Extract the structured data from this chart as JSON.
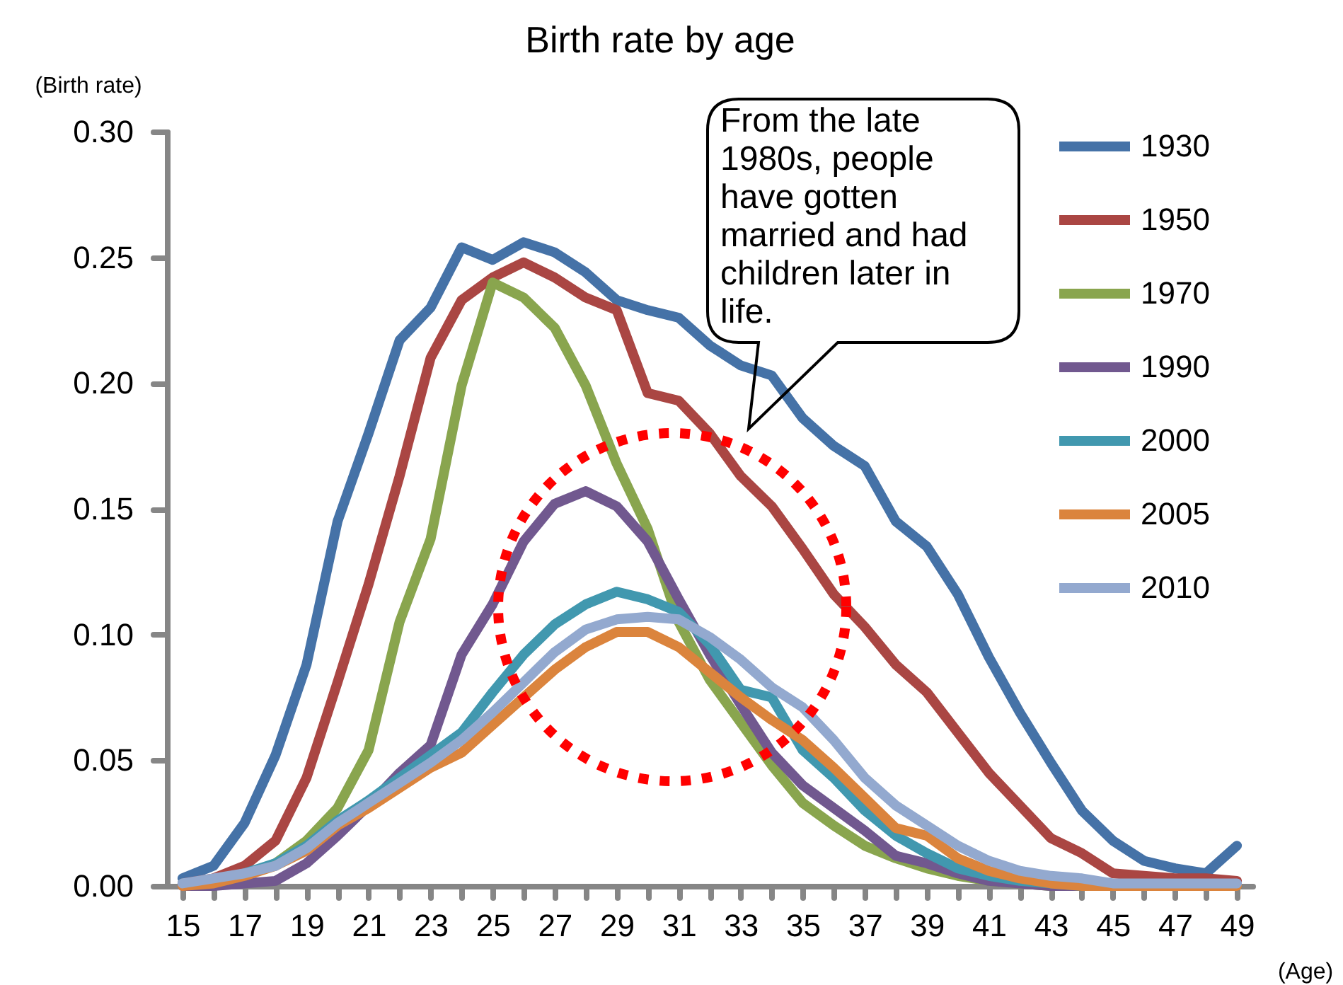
{
  "chart_data": {
    "type": "line",
    "title": "Birth rate by age",
    "xlabel": "(Age)",
    "ylabel": "(Birth rate)",
    "annotations": [
      "From the late 1980s, people have gotten married and had children later in life."
    ],
    "categories": [
      "15",
      null,
      "17",
      null,
      "19",
      null,
      "21",
      null,
      "23",
      null,
      "25",
      null,
      "27",
      null,
      "29",
      null,
      "31",
      null,
      "33",
      null,
      "35",
      null,
      "37",
      null,
      "39",
      null,
      "41",
      null,
      "43",
      null,
      "45",
      null,
      "47",
      null,
      "49"
    ],
    "series": [
      {
        "name": "1930",
        "color": "#4572a7",
        "values": [
          0.003,
          0.008,
          0.025,
          0.052,
          0.088,
          0.145,
          0.18,
          0.217,
          0.23,
          0.254,
          0.249,
          0.256,
          0.252,
          0.244,
          0.233,
          0.229,
          0.226,
          0.215,
          0.207,
          0.203,
          0.186,
          0.175,
          0.167,
          0.145,
          0.135,
          0.116,
          0.091,
          0.069,
          0.049,
          0.03,
          0.018,
          0.01,
          0.007,
          0.005,
          0.016
        ]
      },
      {
        "name": "1950",
        "color": "#aa4643",
        "values": [
          0.001,
          0.003,
          0.008,
          0.018,
          0.043,
          0.081,
          0.12,
          0.163,
          0.21,
          0.233,
          0.242,
          0.248,
          0.242,
          0.234,
          0.229,
          0.196,
          0.193,
          0.18,
          0.163,
          0.151,
          0.134,
          0.116,
          0.103,
          0.088,
          0.077,
          0.061,
          0.045,
          0.032,
          0.019,
          0.013,
          0.005,
          0.004,
          0.003,
          0.003,
          0.002
        ]
      },
      {
        "name": "1970",
        "color": "#89a54e",
        "values": [
          null,
          null,
          0.004,
          0.009,
          0.018,
          0.031,
          0.054,
          0.105,
          0.138,
          0.199,
          0.24,
          0.234,
          0.222,
          0.199,
          0.168,
          0.142,
          0.105,
          0.082,
          0.065,
          0.048,
          0.033,
          0.024,
          0.016,
          0.011,
          0.007,
          0.004,
          0.002,
          0.001,
          0,
          0,
          0,
          0,
          0,
          0,
          0
        ]
      },
      {
        "name": "1990",
        "color": "#71588f",
        "values": [
          0,
          0,
          0.001,
          0.002,
          0.009,
          0.02,
          0.032,
          0.045,
          0.056,
          0.092,
          0.112,
          0.137,
          0.152,
          0.157,
          0.151,
          0.137,
          0.114,
          0.092,
          0.072,
          0.053,
          0.04,
          0.031,
          0.022,
          0.012,
          0.009,
          0.005,
          0.002,
          0.001,
          0,
          0,
          0,
          0,
          0,
          0,
          0
        ]
      },
      {
        "name": "2000",
        "color": "#4198af",
        "values": [
          0.001,
          0.002,
          0.005,
          0.009,
          0.016,
          0.026,
          0.034,
          0.043,
          0.052,
          0.061,
          0.077,
          0.092,
          0.104,
          0.112,
          0.117,
          0.114,
          0.109,
          0.096,
          0.078,
          0.075,
          0.054,
          0.043,
          0.03,
          0.02,
          0.013,
          0.007,
          0.004,
          0.002,
          0.001,
          0,
          0,
          0,
          0,
          0,
          0
        ]
      },
      {
        "name": "2005",
        "color": "#db843d",
        "values": [
          0,
          0.001,
          0.004,
          0.008,
          0.014,
          0.024,
          0.031,
          0.039,
          0.047,
          0.053,
          0.064,
          0.075,
          0.086,
          0.095,
          0.101,
          0.101,
          0.095,
          0.085,
          0.075,
          0.066,
          0.058,
          0.047,
          0.035,
          0.023,
          0.02,
          0.011,
          0.006,
          0.003,
          0.001,
          0,
          0,
          0,
          0,
          0,
          0
        ]
      },
      {
        "name": "2010",
        "color": "#93a9cf",
        "values": [
          0.001,
          0.003,
          0.005,
          0.008,
          0.015,
          0.025,
          0.033,
          0.041,
          0.049,
          0.058,
          0.069,
          0.081,
          0.093,
          0.102,
          0.106,
          0.107,
          0.106,
          0.099,
          0.09,
          0.079,
          0.071,
          0.058,
          0.043,
          0.032,
          0.024,
          0.016,
          0.01,
          0.006,
          0.004,
          0.003,
          0.001,
          0.001,
          0.001,
          0.001,
          0.001
        ]
      }
    ],
    "ylim": [
      0,
      0.3
    ],
    "yticks": [
      {
        "value": 0,
        "label": "0.00"
      },
      {
        "value": 0.05,
        "label": "0.05"
      },
      {
        "value": 0.1,
        "label": "0.10"
      },
      {
        "value": 0.15,
        "label": "0.15"
      },
      {
        "value": 0.2,
        "label": "0.20"
      },
      {
        "value": 0.25,
        "label": "0.25"
      },
      {
        "value": 0.3,
        "label": "0.30"
      }
    ],
    "legend": "top right"
  }
}
